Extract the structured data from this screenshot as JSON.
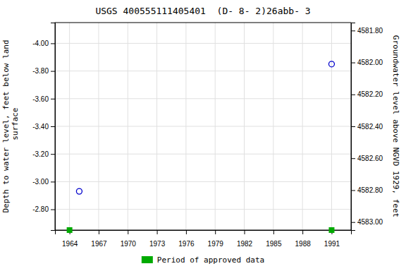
{
  "chart_data": {
    "type": "scatter",
    "title": "USGS 400555111405401  (D- 8- 2)26abb- 3",
    "y_label": "Depth to water level, feet below land\n surface",
    "y2_label": "Groundwater level above NGVD 1929, feet",
    "xlim": [
      1962.5,
      1993.0
    ],
    "xticks": [
      1964,
      1967,
      1970,
      1973,
      1976,
      1979,
      1982,
      1985,
      1988,
      1991
    ],
    "ylim": [
      -2.65,
      -4.15
    ],
    "yticks": [
      {
        "value": -4.0,
        "label": "-4.00"
      },
      {
        "value": -3.8,
        "label": "-3.80"
      },
      {
        "value": -3.6,
        "label": "-3.60"
      },
      {
        "value": -3.4,
        "label": "-3.40"
      },
      {
        "value": -3.2,
        "label": "-3.20"
      },
      {
        "value": -3.0,
        "label": "-3.00"
      },
      {
        "value": -2.8,
        "label": "-2.80"
      }
    ],
    "y2lim": [
      4583.05,
      4581.75
    ],
    "y2ticks": [
      {
        "value": 4583.0,
        "label": "4583.00"
      },
      {
        "value": 4582.8,
        "label": "4582.80"
      },
      {
        "value": 4582.6,
        "label": "4582.60"
      },
      {
        "value": 4582.4,
        "label": "4582.40"
      },
      {
        "value": 4582.2,
        "label": "4582.20"
      },
      {
        "value": 4582.0,
        "label": "4582.00"
      },
      {
        "value": 4581.8,
        "label": "4581.80"
      }
    ],
    "grid": true,
    "legend": "bottom",
    "series": [
      {
        "color": "#0000cc",
        "marker": "circle",
        "x": [
          1965.0,
          1991.0
        ],
        "values": [
          -2.93,
          -3.85
        ]
      },
      {
        "name": "Period of approved data",
        "color": "#00aa00",
        "marker": "square",
        "x": [
          1964.0,
          1991.0
        ],
        "values": [
          -2.65,
          -2.65
        ]
      }
    ]
  }
}
